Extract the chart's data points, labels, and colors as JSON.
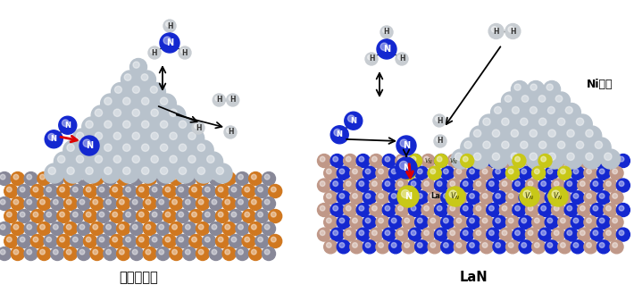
{
  "title_left": "従来の触媒",
  "title_right": "LaN",
  "label_ni": "Ni触媒",
  "bg_color": "#ffffff",
  "n_color": "#1428d0",
  "h_color": "#c8cdd2",
  "ni_color": "#b8c2cc",
  "gray_c": "#888898",
  "orange_c": "#d07820",
  "la_pink": "#c09888",
  "lan_blue": "#1428d0",
  "vn_color": "#c8c818",
  "red_arrow": "#dd0000",
  "black_arrow": "#111111"
}
